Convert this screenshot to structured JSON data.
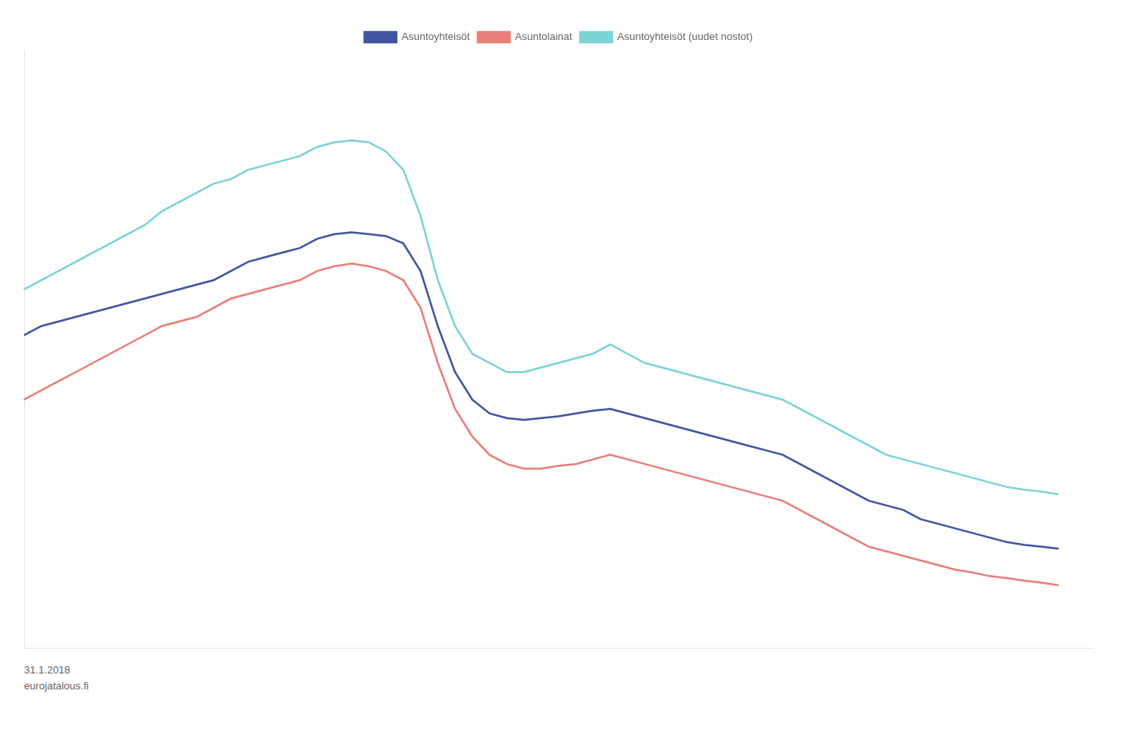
{
  "chart_data": {
    "type": "line",
    "x": [
      2003.0,
      2003.25,
      2003.5,
      2003.75,
      2004.0,
      2004.25,
      2004.5,
      2004.75,
      2005.0,
      2005.25,
      2005.5,
      2005.75,
      2006.0,
      2006.25,
      2006.5,
      2006.75,
      2007.0,
      2007.25,
      2007.5,
      2007.75,
      2008.0,
      2008.25,
      2008.5,
      2008.75,
      2009.0,
      2009.25,
      2009.5,
      2009.75,
      2010.0,
      2010.25,
      2010.5,
      2010.75,
      2011.0,
      2011.25,
      2011.5,
      2011.75,
      2012.0,
      2012.25,
      2012.5,
      2012.75,
      2013.0,
      2013.25,
      2013.5,
      2013.75,
      2014.0,
      2014.25,
      2014.5,
      2014.75,
      2015.0,
      2015.25,
      2015.5,
      2015.75,
      2016.0,
      2016.25,
      2016.5,
      2016.75,
      2017.0,
      2017.25,
      2017.5,
      2017.75,
      2018.0
    ],
    "series": [
      {
        "name": "Asuntoyhteisöt",
        "color": "#4355a0",
        "values": [
          3.4,
          3.5,
          3.55,
          3.6,
          3.65,
          3.7,
          3.75,
          3.8,
          3.85,
          3.9,
          3.95,
          4.0,
          4.1,
          4.2,
          4.25,
          4.3,
          4.35,
          4.45,
          4.5,
          4.52,
          4.5,
          4.48,
          4.4,
          4.1,
          3.5,
          3.0,
          2.7,
          2.55,
          2.5,
          2.48,
          2.5,
          2.52,
          2.55,
          2.58,
          2.6,
          2.55,
          2.5,
          2.45,
          2.4,
          2.35,
          2.3,
          2.25,
          2.2,
          2.15,
          2.1,
          2.0,
          1.9,
          1.8,
          1.7,
          1.6,
          1.55,
          1.5,
          1.4,
          1.35,
          1.3,
          1.25,
          1.2,
          1.15,
          1.12,
          1.1,
          1.08
        ]
      },
      {
        "name": "Asuntolainat",
        "color": "#e8807a",
        "values": [
          2.7,
          2.8,
          2.9,
          3.0,
          3.1,
          3.2,
          3.3,
          3.4,
          3.5,
          3.55,
          3.6,
          3.7,
          3.8,
          3.85,
          3.9,
          3.95,
          4.0,
          4.1,
          4.15,
          4.18,
          4.15,
          4.1,
          4.0,
          3.7,
          3.1,
          2.6,
          2.3,
          2.1,
          2.0,
          1.95,
          1.95,
          1.98,
          2.0,
          2.05,
          2.1,
          2.05,
          2.0,
          1.95,
          1.9,
          1.85,
          1.8,
          1.75,
          1.7,
          1.65,
          1.6,
          1.5,
          1.4,
          1.3,
          1.2,
          1.1,
          1.05,
          1.0,
          0.95,
          0.9,
          0.85,
          0.82,
          0.78,
          0.76,
          0.73,
          0.71,
          0.68
        ]
      },
      {
        "name": "Asuntoyhteisöt (uudet nostot)",
        "color": "#7dd4d4",
        "values": [
          3.9,
          4.0,
          4.1,
          4.2,
          4.3,
          4.4,
          4.5,
          4.6,
          4.75,
          4.85,
          4.95,
          5.05,
          5.1,
          5.2,
          5.25,
          5.3,
          5.35,
          5.45,
          5.5,
          5.52,
          5.5,
          5.4,
          5.2,
          4.7,
          4.0,
          3.5,
          3.2,
          3.1,
          3.0,
          3.0,
          3.05,
          3.1,
          3.15,
          3.2,
          3.3,
          3.2,
          3.1,
          3.05,
          3.0,
          2.95,
          2.9,
          2.85,
          2.8,
          2.75,
          2.7,
          2.6,
          2.5,
          2.4,
          2.3,
          2.2,
          2.1,
          2.05,
          2.0,
          1.95,
          1.9,
          1.85,
          1.8,
          1.75,
          1.72,
          1.7,
          1.67
        ]
      }
    ],
    "xlim": [
      2003.0,
      2018.5
    ],
    "ylim": [
      0.0,
      6.5
    ],
    "grid": false,
    "tick_labels": false,
    "legend": "top",
    "annotations": [
      "31.1.2018",
      "eurojatalous.fi"
    ]
  }
}
